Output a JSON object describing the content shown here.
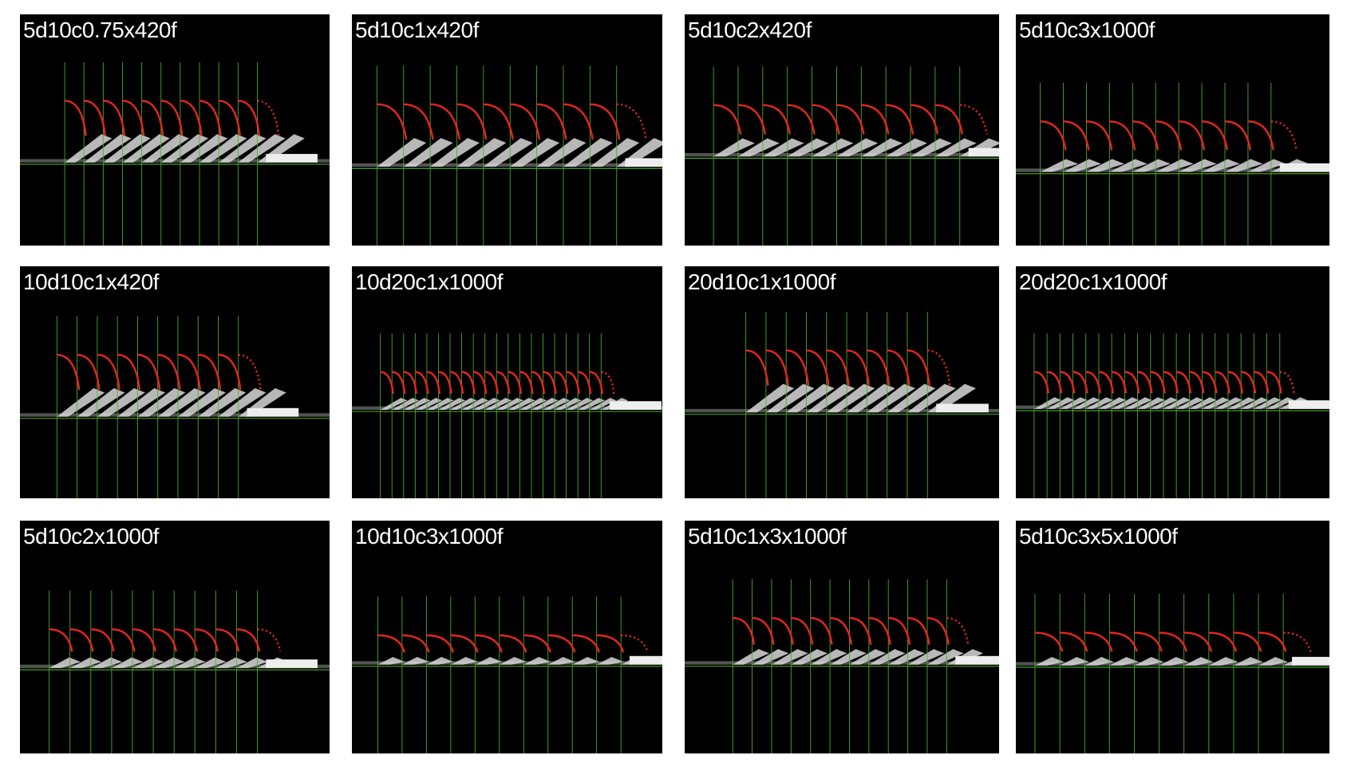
{
  "panels": [
    {
      "label": "5d10c0.75x420f"
    },
    {
      "label": "5d10c1x420f"
    },
    {
      "label": "5d10c2x420f"
    },
    {
      "label": "5d10c3x1000f"
    },
    {
      "label": "10d10c1x420f"
    },
    {
      "label": "10d20c1x1000f"
    },
    {
      "label": "20d10c1x1000f"
    },
    {
      "label": "20d20c1x1000f"
    },
    {
      "label": "5d10c2x1000f"
    },
    {
      "label": "10d10c3x1000f"
    },
    {
      "label": "5d10c1x3x1000f"
    },
    {
      "label": "5d10c3x5x1000f"
    }
  ],
  "colors": {
    "background": "#000000",
    "guide_lines": "#4caf2a",
    "trajectory": "#e8261c",
    "dominoes": "#d8d8d8"
  }
}
